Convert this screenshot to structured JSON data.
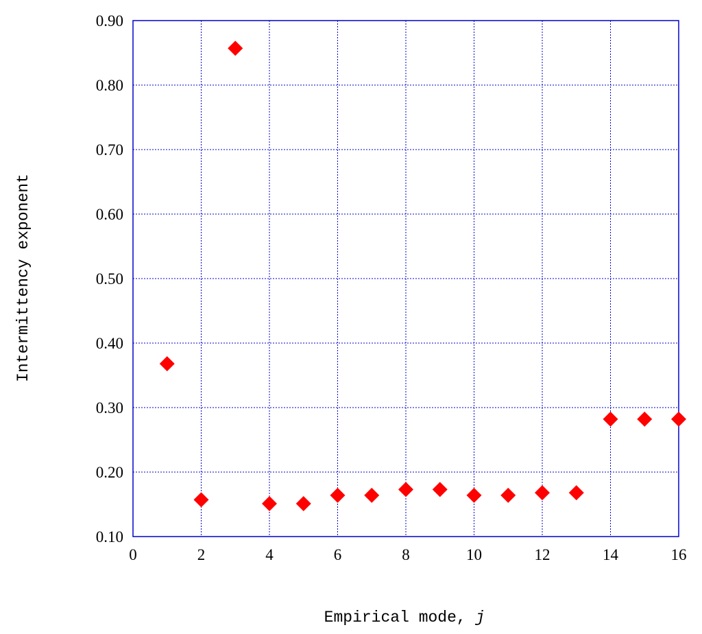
{
  "chart_data": {
    "type": "scatter",
    "xlabel": "Empirical mode, ",
    "xlabel_var": "j",
    "ylabel": "Intermittency exponent",
    "xlim": [
      0,
      16
    ],
    "ylim": [
      0.1,
      0.9
    ],
    "xticks": [
      "0",
      "2",
      "4",
      "6",
      "8",
      "10",
      "12",
      "14",
      "16"
    ],
    "xtick_values": [
      0,
      2,
      4,
      6,
      8,
      10,
      12,
      14,
      16
    ],
    "yticks": [
      "0.10",
      "0.20",
      "0.30",
      "0.40",
      "0.50",
      "0.60",
      "0.70",
      "0.80",
      "0.90"
    ],
    "ytick_values": [
      0.1,
      0.2,
      0.3,
      0.4,
      0.5,
      0.6,
      0.7,
      0.8,
      0.9
    ],
    "grid": true,
    "marker": "diamond",
    "colors": {
      "marker": "#ff0000",
      "grid": "#0000cc",
      "frame": "#0000cc"
    },
    "points": [
      {
        "x": 1,
        "y": 0.368
      },
      {
        "x": 2,
        "y": 0.157
      },
      {
        "x": 3,
        "y": 0.857
      },
      {
        "x": 4,
        "y": 0.151
      },
      {
        "x": 5,
        "y": 0.151
      },
      {
        "x": 6,
        "y": 0.164
      },
      {
        "x": 7,
        "y": 0.164
      },
      {
        "x": 8,
        "y": 0.173
      },
      {
        "x": 9,
        "y": 0.173
      },
      {
        "x": 10,
        "y": 0.164
      },
      {
        "x": 11,
        "y": 0.164
      },
      {
        "x": 12,
        "y": 0.168
      },
      {
        "x": 13,
        "y": 0.168
      },
      {
        "x": 14,
        "y": 0.282
      },
      {
        "x": 15,
        "y": 0.282
      },
      {
        "x": 16,
        "y": 0.282
      }
    ]
  }
}
